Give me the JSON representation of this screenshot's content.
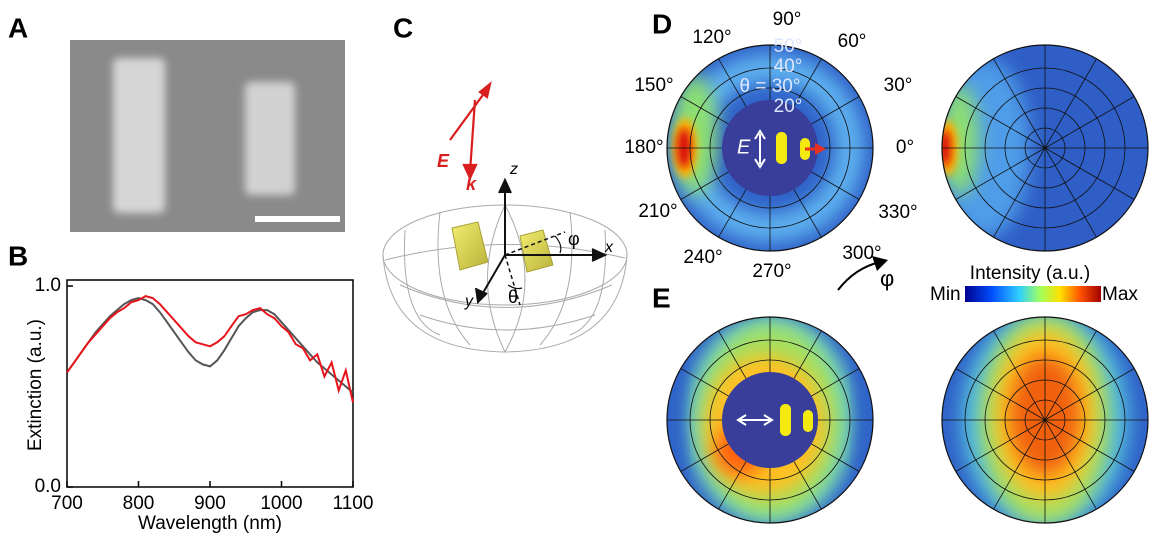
{
  "panel_labels": [
    "A",
    "B",
    "C",
    "D",
    "E"
  ],
  "chart_data": {
    "type": "line",
    "x": [
      700,
      710,
      720,
      730,
      740,
      750,
      760,
      770,
      780,
      790,
      800,
      810,
      820,
      830,
      840,
      850,
      860,
      870,
      880,
      890,
      900,
      910,
      920,
      930,
      940,
      950,
      960,
      970,
      980,
      990,
      1000,
      1010,
      1020,
      1030,
      1040,
      1050,
      1060,
      1070,
      1080,
      1090,
      1100
    ],
    "series": [
      {
        "color": "#555555",
        "values": [
          0.57,
          0.62,
          0.67,
          0.72,
          0.77,
          0.81,
          0.85,
          0.88,
          0.91,
          0.93,
          0.94,
          0.93,
          0.91,
          0.87,
          0.82,
          0.77,
          0.72,
          0.67,
          0.63,
          0.61,
          0.6,
          0.63,
          0.68,
          0.74,
          0.8,
          0.84,
          0.87,
          0.88,
          0.88,
          0.86,
          0.82,
          0.78,
          0.74,
          0.7,
          0.66,
          0.62,
          0.59,
          0.56,
          0.53,
          0.5,
          0.47
        ]
      },
      {
        "color": "#e8141c",
        "values": [
          0.57,
          0.62,
          0.67,
          0.72,
          0.76,
          0.8,
          0.84,
          0.87,
          0.89,
          0.92,
          0.93,
          0.95,
          0.94,
          0.91,
          0.87,
          0.83,
          0.79,
          0.75,
          0.72,
          0.71,
          0.7,
          0.72,
          0.75,
          0.8,
          0.85,
          0.86,
          0.88,
          0.89,
          0.86,
          0.84,
          0.8,
          0.77,
          0.71,
          0.69,
          0.63,
          0.66,
          0.55,
          0.62,
          0.48,
          0.58,
          0.42
        ]
      }
    ],
    "xlim": [
      700,
      1100
    ],
    "ylim": [
      0,
      1.03
    ],
    "xticks": [
      700,
      800,
      900,
      1000,
      1100
    ],
    "yticks": [
      {
        "value": 0,
        "label": "0.0"
      },
      {
        "value": 1,
        "label": "1.0"
      }
    ],
    "x_label": "Wavelength (nm)",
    "y_label": "Extinction (a.u.)"
  },
  "diagram": {
    "E": "E",
    "k": "k",
    "z": "z",
    "x": "x",
    "y": "y",
    "theta": "θ",
    "phi": "φ"
  },
  "polar": {
    "phi_angles": [
      "90°",
      "60°",
      "30°",
      "0°",
      "330°",
      "300°",
      "270°",
      "240°",
      "210°",
      "180°",
      "150°",
      "120°"
    ],
    "theta_angles": [
      "50°",
      "40°",
      "θ = 30°",
      "20°"
    ],
    "field": "E",
    "phi": "φ"
  },
  "colorbar": {
    "title": "Intensity (a.u.)",
    "min": "Min",
    "max": "Max"
  }
}
